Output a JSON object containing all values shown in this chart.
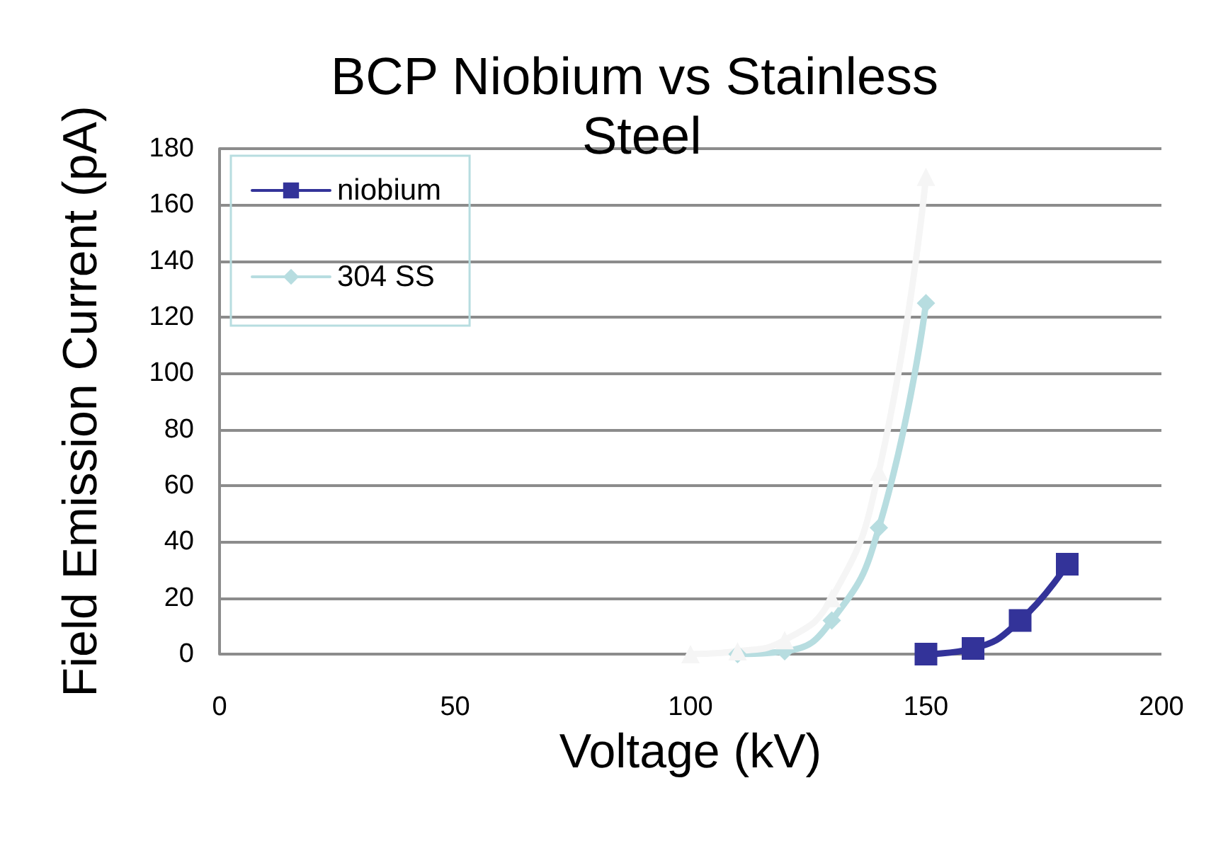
{
  "chart_data": {
    "type": "line",
    "title": "BCP Niobium vs Stainless Steel",
    "xlabel": "Voltage (kV)",
    "ylabel": "Field Emission Current (pA)",
    "xlim": [
      0,
      200
    ],
    "xticks": [
      0,
      50,
      100,
      150,
      200
    ],
    "ylim": [
      0,
      180
    ],
    "yticks": [
      0,
      20,
      40,
      60,
      80,
      100,
      120,
      140,
      160,
      180
    ],
    "grid": "y",
    "legend": "top left",
    "series": [
      {
        "name": "niobium",
        "color": "#333399",
        "marker": "square",
        "x": [
          150,
          160,
          170,
          180
        ],
        "values": [
          0,
          2,
          12,
          32
        ]
      },
      {
        "name": "304 SS",
        "color": "#b7dde0",
        "marker": "diamond",
        "x": [
          110,
          120,
          130,
          140,
          150
        ],
        "values": [
          0,
          1,
          12,
          45,
          125
        ]
      },
      {
        "color": "#f5f5f5",
        "marker": "triangle",
        "x": [
          100,
          110,
          120,
          130,
          140,
          150
        ],
        "values": [
          0,
          1,
          5,
          20,
          65,
          170
        ]
      }
    ]
  }
}
